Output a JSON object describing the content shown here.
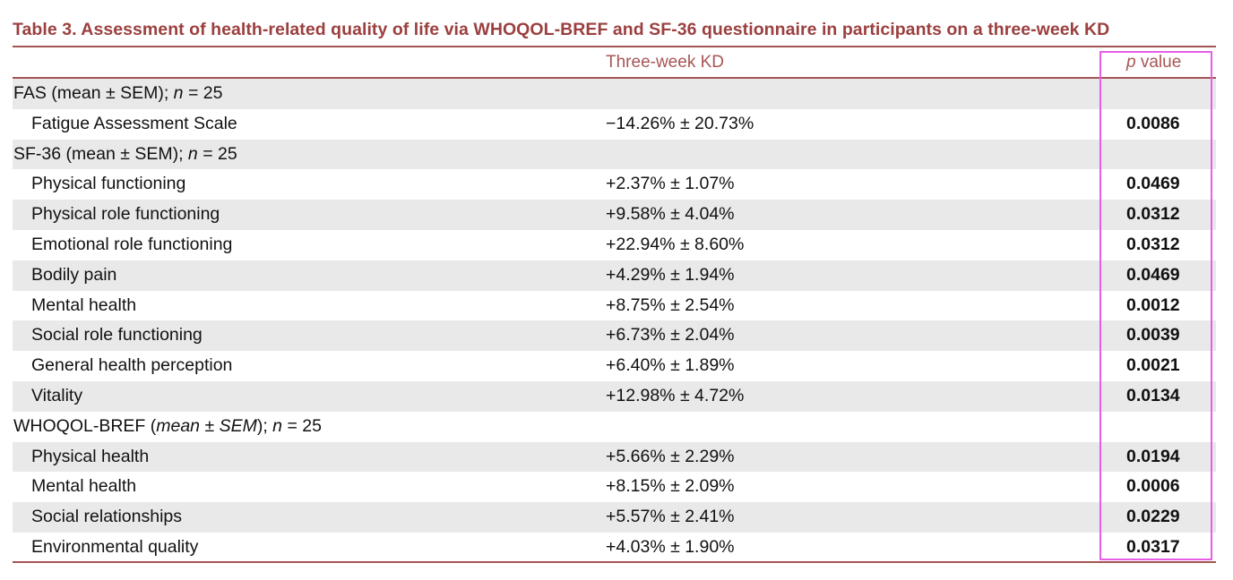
{
  "table": {
    "caption": "Table 3.  Assessment of health-related quality of life via WHOQOL-BREF and SF-36 questionnaire in participants on a three-week KD",
    "header": {
      "col_kd": "Three-week KD",
      "col_p_italic": "p",
      "col_p_rest": " value"
    },
    "rows": [
      {
        "type": "section",
        "label_parts": [
          "FAS (mean ± SEM); ",
          "n",
          " = 25"
        ]
      },
      {
        "type": "item",
        "label": "Fatigue Assessment Scale",
        "kd": "−14.26% ± 20.73%",
        "p": "0.0086"
      },
      {
        "type": "section",
        "label_parts": [
          "SF-36 (mean ± SEM); ",
          "n",
          " = 25"
        ]
      },
      {
        "type": "item",
        "label": "Physical functioning",
        "kd": "+2.37% ± 1.07%",
        "p": "0.0469"
      },
      {
        "type": "item",
        "label": "Physical role functioning",
        "kd": "+9.58% ± 4.04%",
        "p": "0.0312"
      },
      {
        "type": "item",
        "label": "Emotional role functioning",
        "kd": "+22.94% ± 8.60%",
        "p": "0.0312"
      },
      {
        "type": "item",
        "label": "Bodily pain",
        "kd": "+4.29% ± 1.94%",
        "p": "0.0469"
      },
      {
        "type": "item",
        "label": "Mental health",
        "kd": "+8.75% ± 2.54%",
        "p": "0.0012"
      },
      {
        "type": "item",
        "label": "Social role functioning",
        "kd": "+6.73% ± 2.04%",
        "p": "0.0039"
      },
      {
        "type": "item",
        "label": "General health perception",
        "kd": "+6.40% ± 1.89%",
        "p": "0.0021"
      },
      {
        "type": "item",
        "label": "Vitality",
        "kd": "+12.98% ± 4.72%",
        "p": "0.0134"
      },
      {
        "type": "section",
        "label_parts": [
          "WHOQOL-BREF (",
          "mean ± SEM",
          "); ",
          "n",
          " = 25"
        ]
      },
      {
        "type": "item",
        "label": "Physical health",
        "kd": "+5.66% ± 2.29%",
        "p": "0.0194"
      },
      {
        "type": "item",
        "label": "Mental health",
        "kd": "+8.15% ± 2.09%",
        "p": "0.0006"
      },
      {
        "type": "item",
        "label": "Social relationships",
        "kd": "+5.57% ± 2.41%",
        "p": "0.0229"
      },
      {
        "type": "item",
        "label": "Environmental quality",
        "kd": "+4.03% ± 1.90%",
        "p": "0.0317"
      }
    ]
  },
  "colors": {
    "caption": "#9b3f3f",
    "rule": "#a35454",
    "header_text": "#a85656",
    "row_shade": "#e9e9e9",
    "highlight_box": "#e65fe6"
  }
}
